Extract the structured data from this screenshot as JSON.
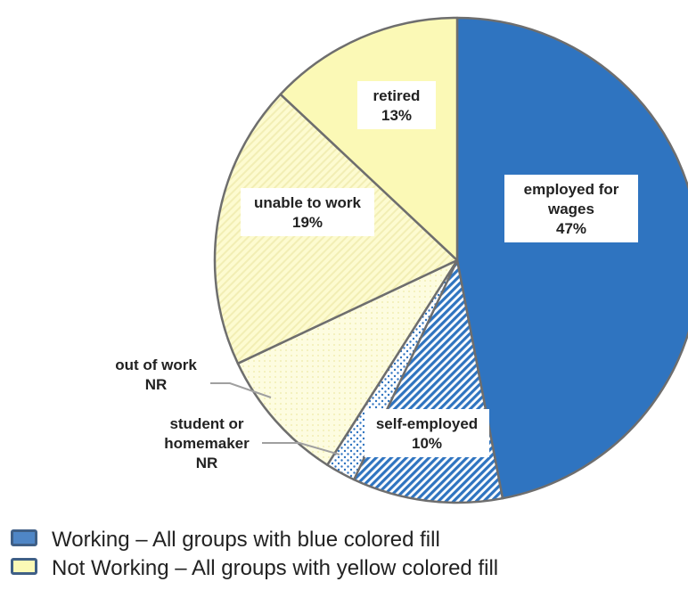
{
  "chart_data": {
    "type": "pie",
    "title": "",
    "start": "12 o'clock, clockwise",
    "slices": [
      {
        "label_lines": [
          "employed for",
          "wages",
          "47%"
        ],
        "value": 47,
        "group": "working",
        "fill": "solid",
        "color": "#2f74c0"
      },
      {
        "label_lines": [
          "self-employed",
          "10%"
        ],
        "value": 10,
        "group": "working",
        "fill": "diagonal-stripes",
        "color": "#2f74c0"
      },
      {
        "label_lines": [
          "student or",
          "homemaker",
          "NR"
        ],
        "value": 2,
        "group": "not-working",
        "fill": "blue-dots",
        "color": "#2f74c0"
      },
      {
        "label_lines": [
          "out of work",
          "NR"
        ],
        "value": 9,
        "group": "not-working",
        "fill": "light-pattern",
        "color": "#fdfce0"
      },
      {
        "label_lines": [
          "unable to work",
          "19%"
        ],
        "value": 19,
        "group": "not-working",
        "fill": "light-stripes",
        "color": "#fdfbc9"
      },
      {
        "label_lines": [
          "retired",
          "13%"
        ],
        "value": 13,
        "group": "not-working",
        "fill": "solid",
        "color": "#fbf9b6"
      }
    ]
  },
  "legend": [
    {
      "text": "Working – All groups with blue colored fill",
      "color": "#4f86c6"
    },
    {
      "text": "Not Working – All groups with yellow colored fill",
      "color": "#fbf9b6"
    }
  ]
}
